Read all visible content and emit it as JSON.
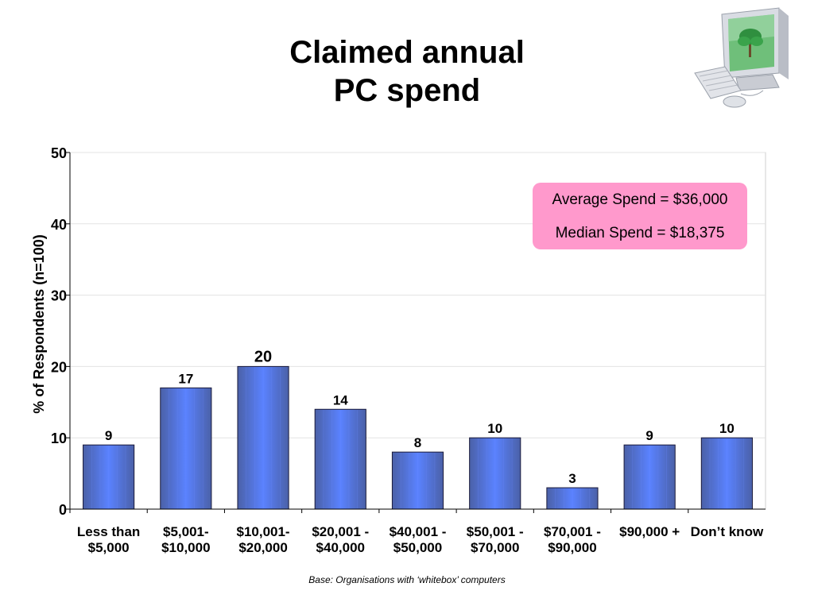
{
  "slide": {
    "title_line1": "Claimed annual",
    "title_line2": "PC spend",
    "footnote": "Base:  Organisations with ‘whitebox’ computers",
    "stats": {
      "average": "Average Spend = $36,000",
      "median": "Median Spend = $18,375"
    }
  },
  "colors": {
    "bar_dark": "#4b61a8",
    "bar_light": "#5a82ff",
    "callout_fill": "#ff99cc"
  },
  "chart_data": {
    "type": "bar",
    "ylabel": "% of Respondents (n=100)",
    "xlabel": "",
    "ylim": [
      0,
      50
    ],
    "yticks": [
      0,
      10,
      20,
      30,
      40,
      50
    ],
    "grid": true,
    "categories": [
      [
        "Less than",
        "$5,000"
      ],
      [
        "$5,001-",
        "$10,000"
      ],
      [
        "$10,001-",
        "$20,000"
      ],
      [
        "$20,001 -",
        "$40,000"
      ],
      [
        "$40,001 -",
        "$50,000"
      ],
      [
        "$50,001 -",
        "$70,000"
      ],
      [
        "$70,001 -",
        "$90,000"
      ],
      [
        "$90,000 +"
      ],
      [
        "Don’t know"
      ]
    ],
    "values": [
      9,
      17,
      20,
      14,
      8,
      10,
      3,
      9,
      10
    ]
  }
}
